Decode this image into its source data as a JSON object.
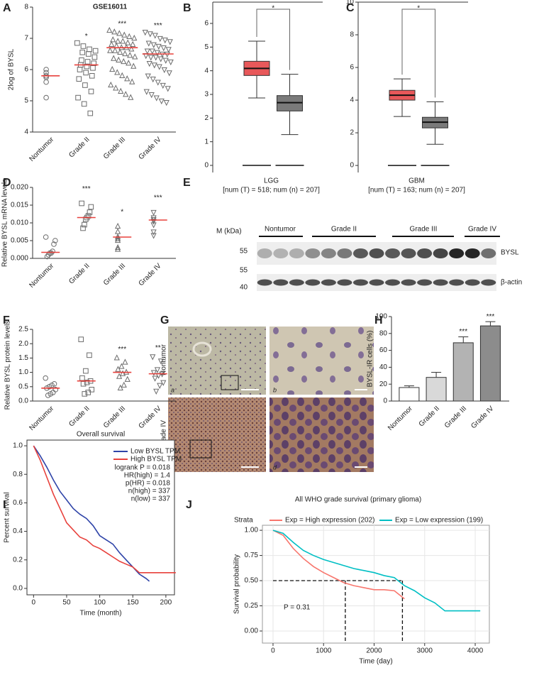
{
  "chart_data": [
    {
      "panel": "A",
      "type": "dotplot",
      "title": "GSE16011",
      "ylabel": "2log of BYSL",
      "categories": [
        "Nontumor",
        "Grade II",
        "Grade III",
        "Grade IV"
      ],
      "markers": [
        "circle",
        "square",
        "triangle",
        "triangle-down"
      ],
      "color": "#6b6b6b",
      "median_color": "#e8413c",
      "points": [
        [
          6.0,
          5.9,
          5.8,
          5.8,
          5.75,
          5.6,
          5.1
        ],
        [
          6.85,
          6.75,
          6.65,
          6.6,
          6.55,
          6.5,
          6.4,
          6.3,
          6.25,
          6.2,
          6.15,
          6.1,
          6.05,
          6.0,
          5.9,
          5.8,
          5.7,
          5.5,
          5.3,
          5.1,
          4.9,
          4.6
        ],
        [
          7.25,
          7.2,
          7.15,
          7.1,
          7.05,
          7.0,
          6.95,
          6.9,
          6.9,
          6.85,
          6.8,
          6.8,
          6.75,
          6.7,
          6.7,
          6.65,
          6.6,
          6.6,
          6.55,
          6.5,
          6.45,
          6.4,
          6.35,
          6.3,
          6.25,
          6.2,
          6.1,
          6.0,
          5.9,
          5.8,
          5.7,
          5.6,
          5.5,
          5.4,
          5.3,
          5.2,
          5.1
        ],
        [
          7.2,
          7.15,
          7.1,
          7.0,
          6.95,
          6.9,
          6.85,
          6.8,
          6.75,
          6.7,
          6.65,
          6.6,
          6.6,
          6.55,
          6.5,
          6.5,
          6.45,
          6.4,
          6.4,
          6.35,
          6.3,
          6.25,
          6.2,
          6.15,
          6.1,
          6.0,
          5.9,
          5.8,
          5.7,
          5.6,
          5.5,
          5.4,
          5.3,
          5.2,
          5.1,
          5.0,
          4.95
        ]
      ],
      "medians": [
        5.8,
        6.15,
        6.7,
        6.5
      ],
      "annotations": [
        null,
        "*",
        "***",
        "***"
      ],
      "ylim": [
        4,
        8
      ],
      "yticks": [
        4,
        5,
        6,
        7,
        8
      ]
    },
    {
      "panel": "B",
      "type": "box",
      "xlabel": "LGG",
      "note": "[num (T) = 518; num (n) = 207]",
      "significance": "*",
      "significance_color": "#e8413c",
      "boxes": [
        {
          "color": "#e8585a",
          "whisker_low": 2.85,
          "q1": 3.8,
          "median": 4.1,
          "q3": 4.4,
          "whisker_high": 5.25
        },
        {
          "color": "#7a7a7a",
          "whisker_low": 1.3,
          "q1": 2.3,
          "median": 2.65,
          "q3": 2.95,
          "whisker_high": 3.85
        }
      ],
      "baseline": 0,
      "ylim": [
        -0.3,
        6.9
      ],
      "yticks": [
        0,
        1,
        2,
        3,
        4,
        5,
        6
      ]
    },
    {
      "panel": "C",
      "type": "box",
      "xlabel": "GBM",
      "note": "[num (T) = 163; num (n) = 207]",
      "significance": "*",
      "significance_color": "#e8413c",
      "boxes": [
        {
          "color": "#e8585a",
          "whisker_low": 3.0,
          "q1": 4.0,
          "median": 4.3,
          "q3": 4.6,
          "whisker_high": 5.3
        },
        {
          "color": "#7a7a7a",
          "whisker_low": 1.3,
          "q1": 2.3,
          "median": 2.65,
          "q3": 2.95,
          "whisker_high": 3.9
        }
      ],
      "baseline": 0,
      "ylim": [
        -0.43,
        10
      ],
      "yticks": [
        0,
        2,
        4,
        6,
        8,
        10
      ]
    },
    {
      "panel": "D",
      "type": "dotplot",
      "ylabel": "Relative BYSL mRNA levels",
      "categories": [
        "Nontumor",
        "Grade II",
        "Grade III",
        "Grade IV"
      ],
      "markers": [
        "circle",
        "square",
        "triangle",
        "triangle-down"
      ],
      "color": "#6b6b6b",
      "median_color": "#e8413c",
      "points": [
        [
          0.006,
          0.005,
          0.004,
          0.002,
          0.0015,
          0.0015,
          0.001,
          0.0005
        ],
        [
          0.0155,
          0.0145,
          0.013,
          0.012,
          0.0115,
          0.011,
          0.0095,
          0.0085
        ],
        [
          0.009,
          0.0075,
          0.006,
          0.0055,
          0.005,
          0.003,
          0.0025
        ],
        [
          0.013,
          0.0115,
          0.011,
          0.0105,
          0.0095,
          0.0075,
          0.0065
        ]
      ],
      "medians": [
        0.0017,
        0.0115,
        0.006,
        0.0108
      ],
      "annotations": [
        null,
        "***",
        "*",
        "***"
      ],
      "ylim": [
        0,
        0.02
      ],
      "yticks": [
        {
          "value": 0,
          "label": "0.000"
        },
        {
          "value": 0.005,
          "label": "0.005"
        },
        {
          "value": 0.01,
          "label": "0.010"
        },
        {
          "value": 0.015,
          "label": "0.015"
        },
        {
          "value": 0.02,
          "label": "0.020"
        }
      ]
    },
    {
      "panel": "F",
      "type": "dotplot",
      "ylabel": "Relative BYSL protein levels",
      "categories": [
        "Nontumor",
        "Grade II",
        "Grade III",
        "Grade IV"
      ],
      "markers": [
        "circle",
        "square",
        "triangle",
        "triangle-down"
      ],
      "color": "#6b6b6b",
      "median_color": "#e8413c",
      "points": [
        [
          0.8,
          0.6,
          0.55,
          0.5,
          0.45,
          0.4,
          0.3,
          0.25,
          0.2
        ],
        [
          2.15,
          1.6,
          1.05,
          0.8,
          0.7,
          0.65,
          0.6,
          0.4,
          0.3,
          0.25
        ],
        [
          1.5,
          1.35,
          1.2,
          1.1,
          1.0,
          0.95,
          0.85,
          0.75,
          0.55,
          0.45
        ],
        [
          1.55,
          1.4,
          1.1,
          1.0,
          0.95,
          0.9,
          0.8,
          0.65,
          0.55,
          0.35
        ]
      ],
      "medians": [
        0.45,
        0.7,
        1.0,
        0.95
      ],
      "annotations": [
        null,
        null,
        "***",
        "**"
      ],
      "ylim": [
        0,
        2.5
      ],
      "yticks": [
        {
          "value": 0,
          "label": "0.0"
        },
        0.5,
        {
          "value": 1,
          "label": "1.0"
        },
        1.5,
        {
          "value": 2,
          "label": "2.0"
        },
        2.5
      ]
    },
    {
      "panel": "H",
      "type": "bar",
      "ylabel": "BYSL-IR cells (%)",
      "categories": [
        "Nontumor",
        "Grade II",
        "Grade III",
        "Grade IV"
      ],
      "values": [
        16,
        28,
        69,
        89
      ],
      "errors": [
        2,
        6,
        7,
        5
      ],
      "colors": [
        "#ffffff",
        "#d9d9d9",
        "#b3b3b3",
        "#8c8c8c"
      ],
      "annotations": [
        null,
        null,
        "***",
        "***"
      ],
      "ylim": [
        0,
        100
      ],
      "yticks": [
        0,
        20,
        40,
        60,
        80,
        100
      ]
    },
    {
      "panel": "I",
      "type": "km",
      "title": "Overall survival",
      "xlabel": "Time (month)",
      "ylabel": "Percent survival",
      "legend": "upper right",
      "series": [
        {
          "name": "Low BYSL TPM",
          "color": "#2f44a8",
          "x": [
            0,
            10,
            20,
            30,
            40,
            50,
            60,
            70,
            80,
            90,
            100,
            110,
            120,
            130,
            140,
            150,
            160,
            170,
            175
          ],
          "y": [
            1,
            0.93,
            0.85,
            0.76,
            0.68,
            0.62,
            0.56,
            0.52,
            0.49,
            0.44,
            0.37,
            0.34,
            0.31,
            0.25,
            0.2,
            0.15,
            0.1,
            0.07,
            0.05
          ]
        },
        {
          "name": "High BYSL TPM",
          "color": "#e8413c",
          "x": [
            0,
            10,
            20,
            30,
            40,
            50,
            60,
            70,
            80,
            90,
            100,
            110,
            120,
            130,
            140,
            150,
            160,
            170,
            180,
            200,
            215
          ],
          "y": [
            1,
            0.9,
            0.78,
            0.66,
            0.56,
            0.46,
            0.41,
            0.36,
            0.34,
            0.3,
            0.28,
            0.25,
            0.22,
            0.19,
            0.17,
            0.15,
            0.11,
            0.11,
            0.11,
            0.11,
            0.11
          ]
        }
      ],
      "stats": [
        "logrank P = 0.018",
        "HR(high) = 1.4",
        "p(HR) = 0.018",
        "n(high) = 337",
        "n(low) = 337"
      ],
      "xlim": [
        -10,
        213
      ],
      "xticks": [
        0,
        50,
        100,
        150,
        200
      ],
      "ylim": [
        -0.045,
        1.04
      ],
      "yticks": [
        {
          "value": 0,
          "label": "0.0"
        },
        0.2,
        0.4,
        0.6,
        0.8,
        {
          "value": 1,
          "label": "1.0"
        }
      ]
    },
    {
      "panel": "J",
      "type": "km",
      "title": "All WHO grade survival (primary glioma)",
      "xlabel": "Time (day)",
      "ylabel": "Survival probability",
      "legend": "top",
      "legend_title": "Strata",
      "grid": true,
      "series": [
        {
          "name": "Exp = High expression (202)",
          "color": "#f8766d",
          "median": 1430,
          "x": [
            0,
            200,
            400,
            600,
            800,
            1000,
            1200,
            1400,
            1600,
            1800,
            2000,
            2200,
            2400,
            2600
          ],
          "y": [
            1,
            0.95,
            0.82,
            0.72,
            0.64,
            0.58,
            0.53,
            0.48,
            0.45,
            0.43,
            0.41,
            0.41,
            0.4,
            0.32
          ]
        },
        {
          "name": "Exp = Low expression (199)",
          "color": "#00bfc4",
          "median": 2560,
          "x": [
            0,
            200,
            400,
            600,
            800,
            1000,
            1200,
            1400,
            1600,
            1800,
            2000,
            2200,
            2400,
            2600,
            2800,
            3000,
            3200,
            3400,
            3600,
            4000,
            4100
          ],
          "y": [
            1,
            0.97,
            0.88,
            0.8,
            0.75,
            0.71,
            0.68,
            0.65,
            0.62,
            0.6,
            0.58,
            0.55,
            0.53,
            0.45,
            0.4,
            0.33,
            0.28,
            0.2,
            0.2,
            0.2,
            0.2
          ]
        }
      ],
      "median_survival": 0.5,
      "annotation": "P = 0.31",
      "xlim": [
        -210,
        4280
      ],
      "xticks": [
        0,
        1000,
        2000,
        3000,
        4000
      ],
      "ylim": [
        -0.12,
        1.05
      ],
      "yticks": [
        {
          "value": 0,
          "label": "0.00"
        },
        0.25,
        {
          "value": 0.5,
          "label": "0.50"
        },
        0.75,
        {
          "value": 1,
          "label": "1.00"
        }
      ]
    }
  ],
  "blot": {
    "panel": "E",
    "mw_label": "M (kDa)",
    "groups": [
      "Nontumor",
      "Grade II",
      "Grade III",
      "Grade IV"
    ],
    "markers": [
      "55",
      "55",
      "40"
    ],
    "bands": [
      "BYSL",
      "β-actin"
    ]
  },
  "histology": {
    "panel": "G",
    "rows": [
      "Nontumor",
      "Grade IV"
    ],
    "tiles": [
      "a",
      "b",
      "c",
      "d"
    ]
  }
}
